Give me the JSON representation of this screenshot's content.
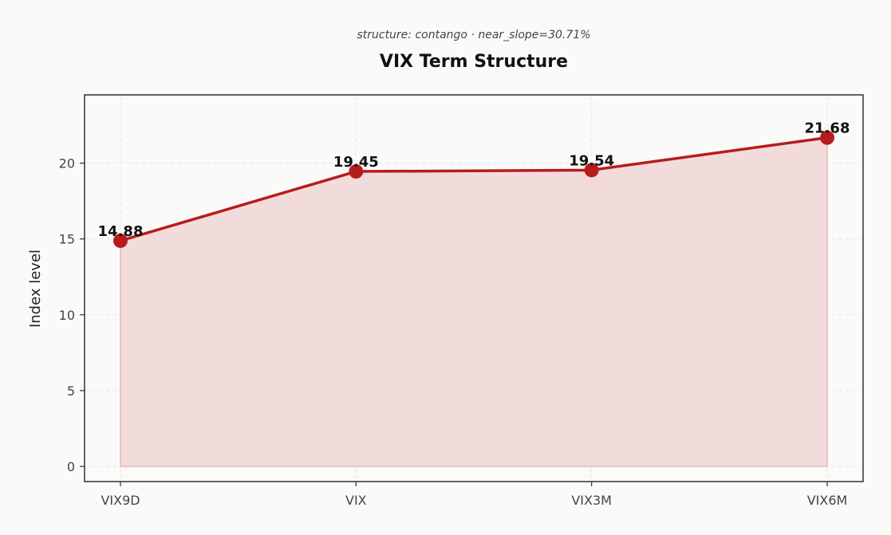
{
  "chart_data": {
    "type": "area",
    "subtitle": "structure: contango · near_slope=30.71%",
    "title": "VIX Term Structure",
    "xlabel": "",
    "ylabel": "Index level",
    "categories": [
      "VIX9D",
      "VIX",
      "VIX3M",
      "VIX6M"
    ],
    "series": [
      {
        "values": [
          14.88,
          19.45,
          19.54,
          21.68
        ]
      }
    ],
    "data_labels": [
      "14.88",
      "19.45",
      "19.54",
      "21.68"
    ],
    "ylim": [
      -1,
      24.5
    ],
    "yticks": [
      0,
      5,
      10,
      15,
      20
    ],
    "ytick_labels": [
      "0",
      "5",
      "10",
      "15",
      "20"
    ],
    "grid": true,
    "legend": "none",
    "colors": {
      "line": "#b71c1c",
      "fill": "#f2dcdb",
      "fill_edge": "#e2b8b6",
      "frame": "#333333",
      "background": "#fafaf8"
    }
  }
}
